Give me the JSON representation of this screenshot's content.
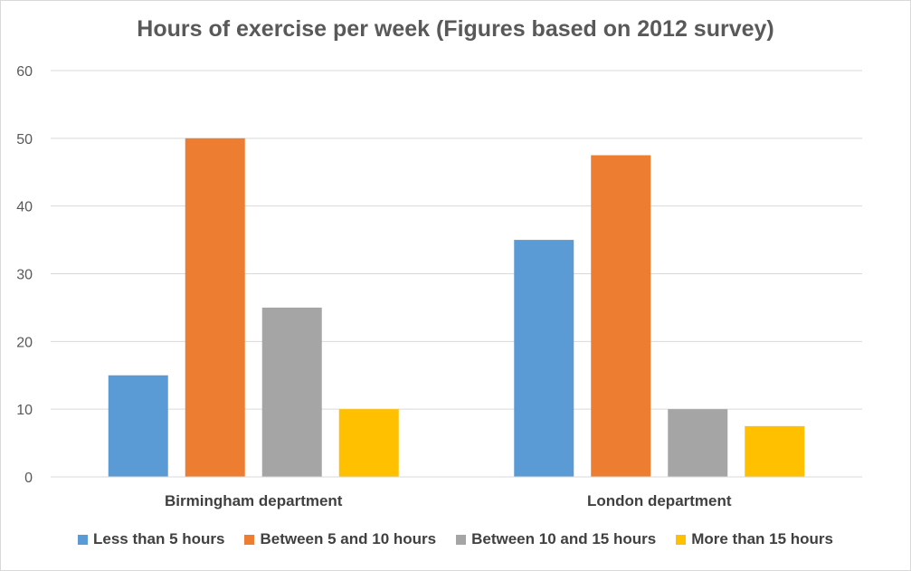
{
  "chart_data": {
    "type": "bar",
    "title": "Hours of exercise per week (Figures based on 2012 survey)",
    "xlabel": "",
    "ylabel": "",
    "categories": [
      "Birmingham department",
      "London department"
    ],
    "series": [
      {
        "name": "Less than 5 hours",
        "values": [
          15,
          35
        ],
        "color": "#5b9bd5"
      },
      {
        "name": "Between 5 and 10 hours",
        "values": [
          50,
          47.5
        ],
        "color": "#ed7d31"
      },
      {
        "name": "Between 10 and 15 hours",
        "values": [
          25,
          10
        ],
        "color": "#a5a5a5"
      },
      {
        "name": "More than 15 hours",
        "values": [
          10,
          7.5
        ],
        "color": "#ffc000"
      }
    ],
    "ylim": [
      0,
      60
    ],
    "yticks": [
      "0",
      "10",
      "20",
      "30",
      "40",
      "50",
      "60"
    ],
    "grid": true,
    "legend_position": "bottom"
  }
}
